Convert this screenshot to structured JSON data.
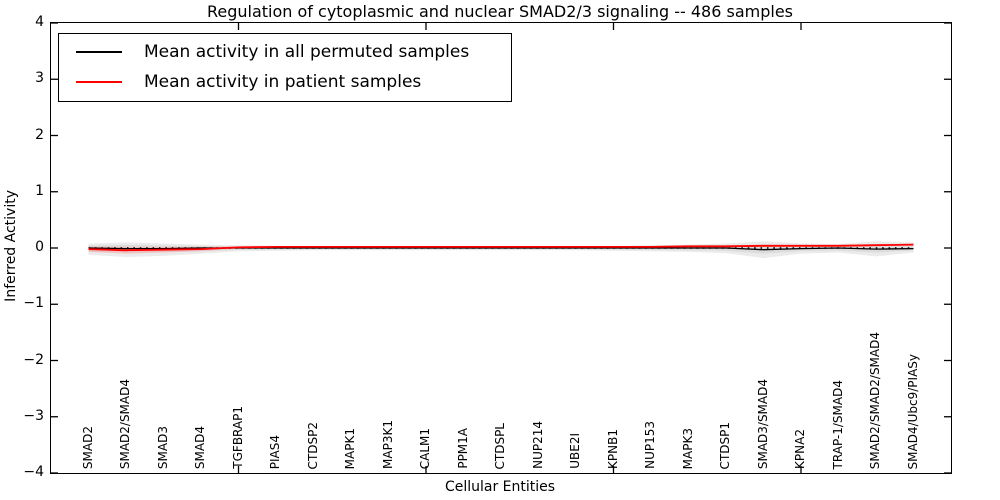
{
  "legend": {
    "entries": [
      {
        "label": "Mean activity in all permuted samples",
        "color": "#000000"
      },
      {
        "label": "Mean activity in patient samples",
        "color": "#ff0000"
      }
    ]
  },
  "colors": {
    "frame": "#000000",
    "background": "#ffffff",
    "gray_band_outer": "#ebebeb",
    "gray_band_inner": "#d9d9d9",
    "pink_band": "#f5b5b5",
    "zero_line": "#000000",
    "permuted_line": "#000000",
    "patient_line": "#ff0000"
  },
  "chart_data": {
    "type": "line",
    "title": "Regulation of cytoplasmic and nuclear SMAD2/3 signaling -- 486 samples",
    "xlabel": "Cellular Entities",
    "ylabel": "Inferred Activity",
    "ylim": [
      -4,
      4
    ],
    "xlim_categories": [
      0,
      24
    ],
    "grid": false,
    "legend_position": "upper left",
    "yticks": {
      "values": [
        4,
        3,
        2,
        1,
        0,
        -1,
        -2,
        -3,
        -4
      ],
      "labels": [
        "4",
        "3",
        "2",
        "1",
        "0",
        "−1",
        "−2",
        "−3",
        "−4"
      ]
    },
    "xticks": {
      "category_positions_1based": [
        5,
        10,
        15,
        20
      ]
    },
    "categories": [
      "SMAD2",
      "SMAD2/SMAD4",
      "SMAD3",
      "SMAD4",
      "TGFBRAP1",
      "PIAS4",
      "CTDSP2",
      "MAPK1",
      "MAP3K1",
      "CALM1",
      "PPM1A",
      "CTDSPL",
      "NUP214",
      "UBE2I",
      "KPNB1",
      "NUP153",
      "MAPK3",
      "CTDSP1",
      "SMAD3/SMAD4",
      "KPNA2",
      "TRAP-1/SMAD4",
      "SMAD2/SMAD2/SMAD4",
      "SMAD4/Ubc9/PIASy"
    ],
    "series": [
      {
        "name": "Mean activity in all permuted samples",
        "color": "#000000",
        "style": "solid",
        "values": [
          0,
          -0.01,
          -0.01,
          0,
          0,
          0,
          0,
          0,
          0,
          0,
          0,
          0,
          0,
          0,
          0,
          0,
          0,
          0,
          -0.03,
          -0.01,
          0,
          -0.02,
          -0.01
        ]
      },
      {
        "name": "Mean activity in patient samples",
        "color": "#ff0000",
        "style": "solid",
        "values": [
          -0.02,
          -0.04,
          -0.03,
          -0.02,
          0.01,
          0.02,
          0.02,
          0.02,
          0.02,
          0.02,
          0.02,
          0.02,
          0.02,
          0.02,
          0.02,
          0.02,
          0.03,
          0.03,
          0.04,
          0.04,
          0.04,
          0.05,
          0.06
        ]
      }
    ],
    "zero_reference_line": {
      "value": 0,
      "style": "dotted",
      "color": "#000000"
    },
    "bands": {
      "permuted_spread": {
        "upper": [
          0.08,
          0.1,
          0.08,
          0.06,
          0.05,
          0.04,
          0.04,
          0.04,
          0.04,
          0.04,
          0.04,
          0.04,
          0.04,
          0.04,
          0.04,
          0.05,
          0.06,
          0.08,
          0.12,
          0.08,
          0.07,
          0.12,
          0.1
        ],
        "lower": [
          -0.12,
          -0.16,
          -0.14,
          -0.1,
          -0.06,
          -0.05,
          -0.04,
          -0.04,
          -0.04,
          -0.04,
          -0.04,
          -0.04,
          -0.04,
          -0.04,
          -0.05,
          -0.06,
          -0.07,
          -0.09,
          -0.18,
          -0.1,
          -0.08,
          -0.15,
          -0.08
        ]
      },
      "patient_spread": {
        "upper": [
          0.03,
          0.02,
          0.02,
          0.02,
          0.03,
          0.035,
          0.035,
          0.035,
          0.035,
          0.035,
          0.035,
          0.035,
          0.035,
          0.035,
          0.035,
          0.035,
          0.045,
          0.045,
          0.055,
          0.055,
          0.055,
          0.065,
          0.075
        ],
        "lower": [
          -0.07,
          -0.1,
          -0.08,
          -0.06,
          -0.01,
          0.005,
          0.005,
          0.005,
          0.005,
          0.005,
          0.005,
          0.005,
          0.005,
          0.005,
          0.005,
          0.005,
          0.015,
          0.015,
          0.025,
          0.025,
          0.025,
          0.035,
          0.045
        ]
      }
    }
  }
}
